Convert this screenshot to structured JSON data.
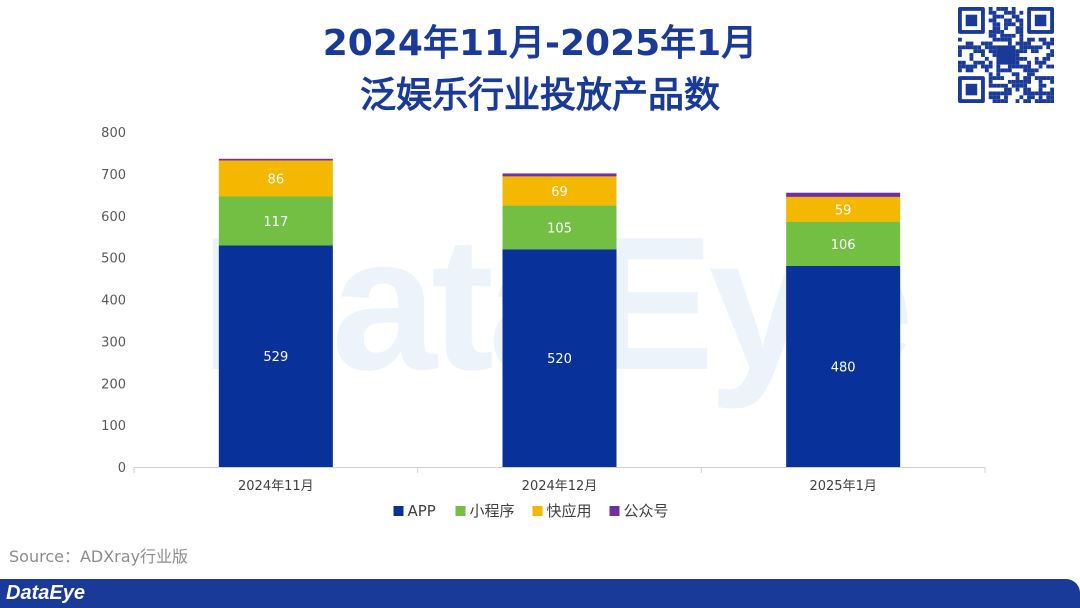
{
  "title_line1": "2024年11月-2025年1月",
  "title_line2": "泛娱乐行业投放产品数",
  "watermark_text": "DataEye",
  "source_text": "Source：ADXray行业版",
  "footer": {
    "brand": "DataEye",
    "bar_color": "#1a3a9a"
  },
  "chart_data": {
    "type": "bar",
    "stacked": true,
    "categories": [
      "2024年11月",
      "2024年12月",
      "2025年1月"
    ],
    "series": [
      {
        "name": "APP",
        "values": [
          529,
          520,
          480
        ],
        "color": "#08319a",
        "label_color": "#ffffff"
      },
      {
        "name": "小程序",
        "values": [
          117,
          105,
          106
        ],
        "color": "#73bf43",
        "label_color": "#ffffff"
      },
      {
        "name": "快应用",
        "values": [
          86,
          69,
          59
        ],
        "color": "#f5b800",
        "label_color": "#ffffff"
      },
      {
        "name": "公众号",
        "values": [
          4,
          7,
          10
        ],
        "color": "#7030a0",
        "label_color": null
      }
    ],
    "ylim": [
      0,
      800
    ],
    "yticks": [
      0,
      100,
      200,
      300,
      400,
      500,
      600,
      700,
      800
    ],
    "legend_position": "bottom",
    "grid": false
  }
}
